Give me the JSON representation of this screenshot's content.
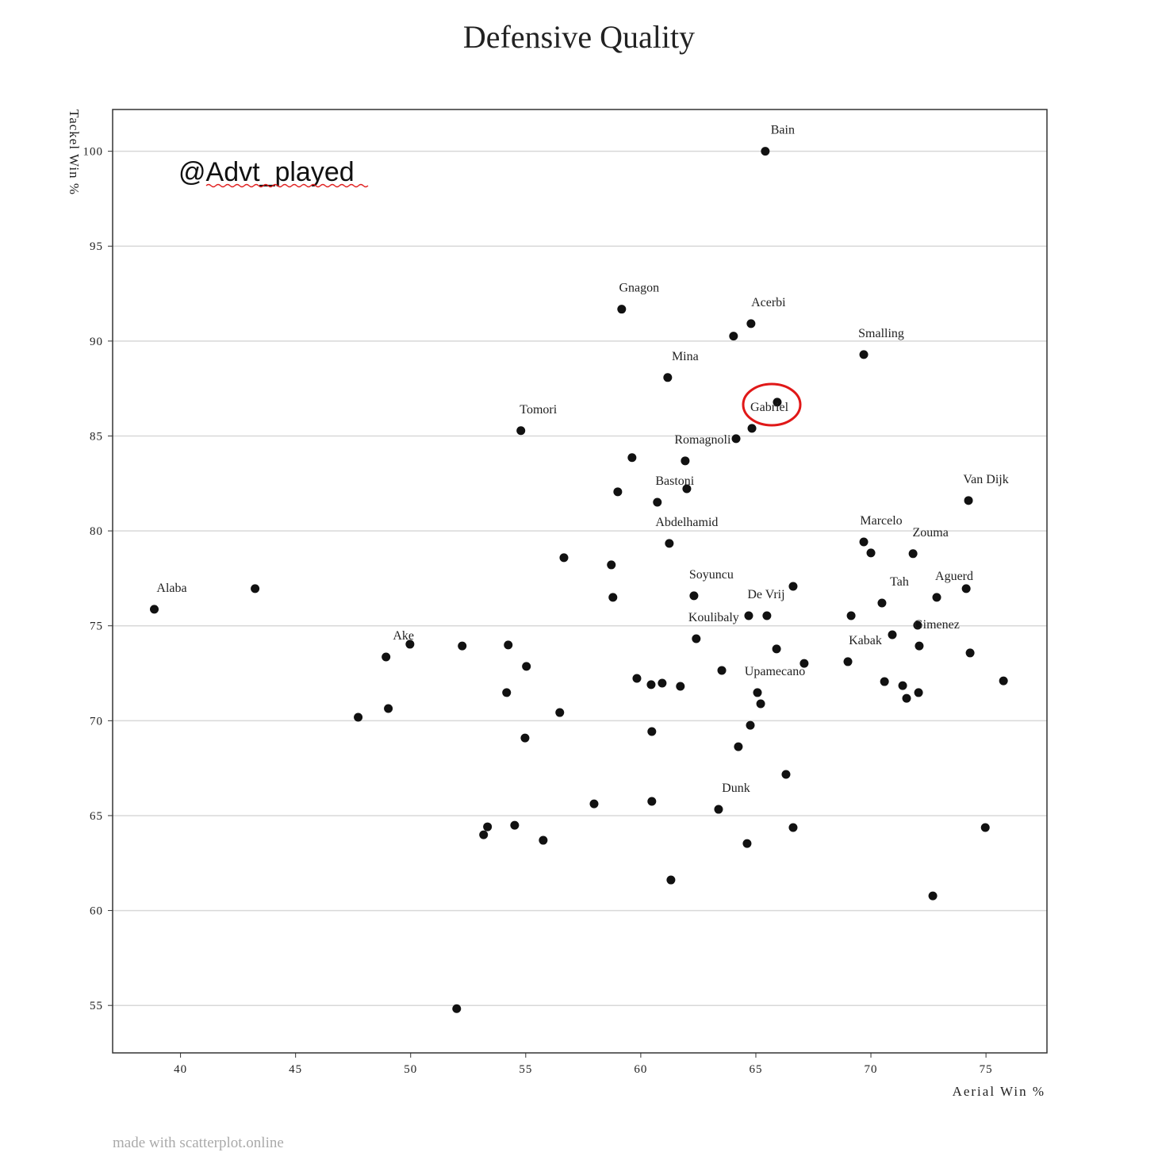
{
  "chart_data": {
    "type": "scatter",
    "title": "Defensive Quality",
    "annotation": "@Advt_played",
    "footer": "made with scatterplot.online",
    "x_label": "Aerial Win %",
    "y_label": "Tackel Win %",
    "color": "#111111",
    "grid": true,
    "xlim": [
      37.05,
      77.65
    ],
    "ylim": [
      52.5,
      102.2
    ],
    "xticks": [
      40,
      45,
      50,
      55,
      60,
      65,
      70,
      75
    ],
    "yticks": [
      55,
      60,
      65,
      70,
      75,
      80,
      85,
      90,
      95,
      100
    ],
    "x": [
      65.41,
      59.17,
      64.79,
      64.03,
      69.69,
      61.17,
      65.93,
      64.83,
      54.79,
      64.14,
      59.62,
      61.93,
      62.0,
      59.0,
      60.72,
      74.24,
      61.24,
      69.69,
      70.0,
      71.83,
      56.66,
      58.72,
      38.86,
      43.24,
      62.31,
      58.79,
      66.62,
      74.14,
      72.86,
      70.48,
      65.48,
      64.69,
      69.14,
      72.03,
      70.93,
      62.41,
      72.1,
      65.9,
      74.31,
      49.97,
      52.24,
      54.24,
      48.93,
      69.0,
      67.1,
      55.03,
      63.52,
      59.83,
      60.45,
      60.93,
      61.72,
      70.59,
      75.76,
      71.38,
      54.17,
      65.07,
      72.07,
      71.55,
      65.21,
      49.03,
      47.72,
      56.48,
      64.76,
      60.48,
      54.97,
      64.24,
      66.31,
      63.38,
      57.97,
      60.48,
      53.34,
      53.17,
      54.52,
      55.76,
      64.62,
      66.62,
      74.97,
      61.31,
      72.69,
      52.0
    ],
    "values": [
      100,
      91.68,
      90.92,
      90.26,
      89.29,
      88.08,
      86.78,
      85.4,
      85.28,
      84.86,
      83.86,
      83.69,
      82.22,
      82.06,
      81.51,
      81.6,
      79.34,
      79.42,
      78.84,
      78.8,
      78.59,
      78.21,
      75.87,
      76.96,
      76.58,
      76.5,
      77.08,
      76.96,
      76.5,
      76.2,
      75.53,
      75.53,
      75.53,
      75.03,
      74.53,
      74.32,
      73.94,
      73.78,
      73.57,
      74.03,
      73.94,
      73.99,
      73.36,
      73.11,
      73.02,
      72.86,
      72.65,
      72.23,
      71.9,
      71.98,
      71.81,
      72.06,
      72.1,
      71.85,
      71.48,
      71.48,
      71.48,
      71.18,
      70.89,
      70.64,
      70.18,
      70.43,
      69.76,
      69.43,
      69.09,
      68.63,
      67.17,
      65.33,
      65.62,
      65.75,
      64.41,
      63.99,
      64.49,
      63.7,
      63.53,
      64.37,
      64.37,
      61.61,
      60.77,
      54.83
    ],
    "labels": [
      "Bain",
      "Gnagon",
      "Acerbi",
      null,
      "Smalling",
      "Mina",
      null,
      "Gabriel",
      "Tomori",
      null,
      null,
      "Romagnoli",
      null,
      null,
      "Bastoni",
      "Van Dijk",
      "Abdelhamid",
      "Marcelo",
      null,
      "Zouma",
      null,
      null,
      "Alaba",
      null,
      "Soyuncu",
      null,
      null,
      null,
      "Aguerd",
      "Tah",
      null,
      "De Vrij",
      null,
      null,
      null,
      "Koulibaly",
      "Gimenez",
      null,
      null,
      null,
      null,
      null,
      "Ake",
      "Kabak",
      null,
      null,
      null,
      null,
      null,
      null,
      null,
      null,
      null,
      null,
      null,
      "Upamecano",
      null,
      null,
      null,
      null,
      null,
      null,
      null,
      null,
      null,
      null,
      null,
      "Dunk",
      null,
      null,
      null,
      null,
      null,
      null,
      null,
      null,
      null,
      null,
      null,
      null
    ]
  }
}
